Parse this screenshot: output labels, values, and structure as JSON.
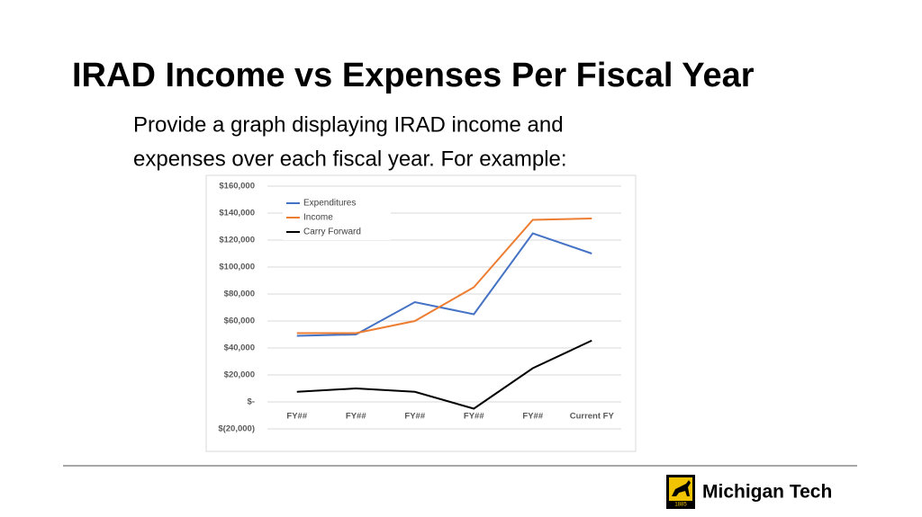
{
  "header": {
    "title": "IRAD Income vs Expenses Per Fiscal Year"
  },
  "body": {
    "lines": [
      "Provide a graph displaying IRAD income and",
      "expenses over each fiscal year. For example:"
    ]
  },
  "chart_data": {
    "type": "line",
    "categories": [
      "FY##",
      "FY##",
      "FY##",
      "FY##",
      "FY##",
      "Current FY"
    ],
    "series": [
      {
        "name": "Expenditures",
        "color": "#4472c4",
        "values": [
          49000,
          50000,
          74000,
          65000,
          125000,
          110000
        ]
      },
      {
        "name": "Income",
        "color": "#ed7d31",
        "values": [
          51000,
          51000,
          60000,
          85000,
          135000,
          136000
        ]
      },
      {
        "name": "Carry Forward",
        "color": "#000000",
        "values": [
          7500,
          10000,
          7500,
          -5000,
          25000,
          45500
        ]
      }
    ],
    "ylim": [
      -20000,
      160000
    ],
    "yticks": [
      {
        "value": -20000,
        "label": "$(20,000)"
      },
      {
        "value": 0,
        "label": "$-"
      },
      {
        "value": 20000,
        "label": "$20,000"
      },
      {
        "value": 40000,
        "label": "$40,000"
      },
      {
        "value": 60000,
        "label": "$60,000"
      },
      {
        "value": 80000,
        "label": "$80,000"
      },
      {
        "value": 100000,
        "label": "$100,000"
      },
      {
        "value": 120000,
        "label": "$120,000"
      },
      {
        "value": 140000,
        "label": "$140,000"
      },
      {
        "value": 160000,
        "label": "$160,000"
      }
    ],
    "grid": true,
    "legend": "upper left"
  },
  "logo": {
    "text": "Michigan Tech",
    "year": "1885"
  }
}
